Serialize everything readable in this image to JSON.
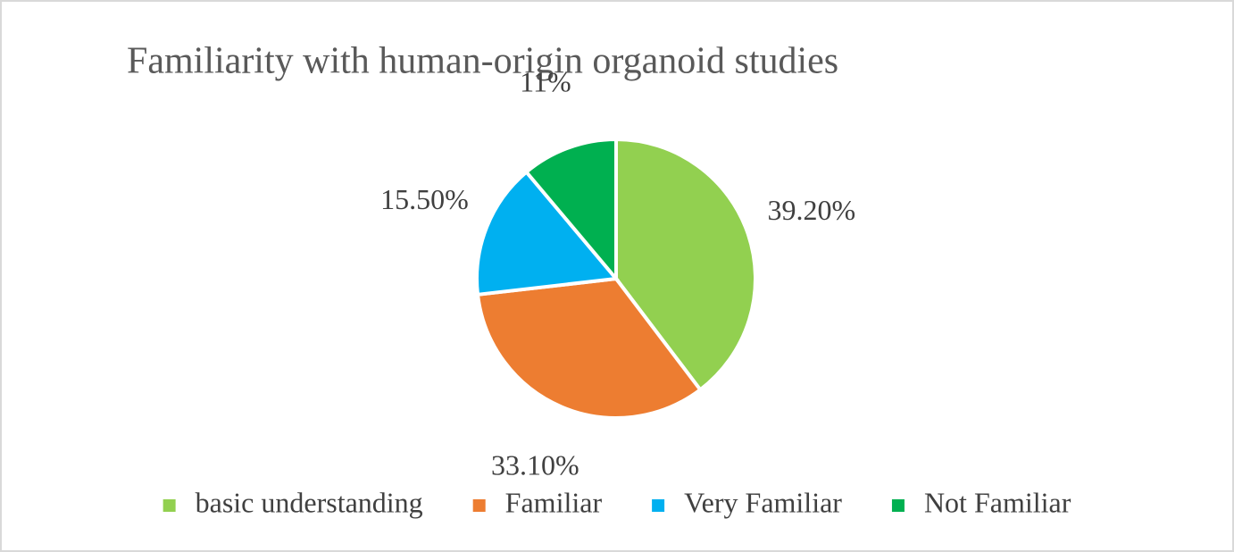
{
  "chart_data": {
    "type": "pie",
    "title": "Familiarity with human-origin organoid studies",
    "categories": [
      "basic understanding",
      "Familiar",
      "Very Familiar",
      "Not Familiar"
    ],
    "values": [
      39.2,
      33.1,
      15.5,
      11
    ],
    "value_labels": [
      "39.20%",
      "33.10%",
      "15.50%",
      "11%"
    ],
    "colors": [
      "#92d050",
      "#ed7d31",
      "#00b0f0",
      "#00b050"
    ],
    "legend": "bottom"
  }
}
